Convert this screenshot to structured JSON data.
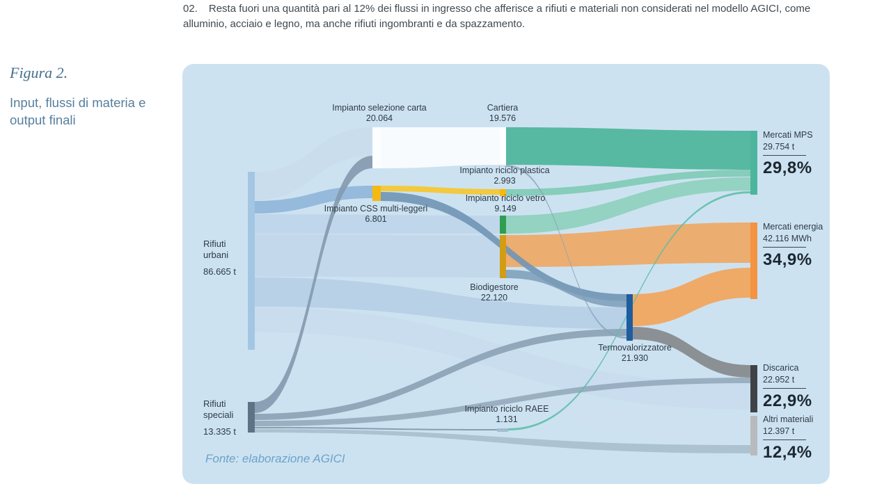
{
  "note": {
    "number": "02.",
    "text": "Resta fuori una quantità pari al 12% dei flussi in ingresso che afferisce a rifiuti e materiali non considerati nel modello AGICI, come alluminio, acciaio e legno, ma anche rifiuti ingombranti e da spazzamento."
  },
  "figure": {
    "label": "Figura 2.",
    "title": "Input, flussi di materia e output finali",
    "source": "Fonte: elaborazione AGICI"
  },
  "chart_data": {
    "type": "sankey",
    "title": "Input, flussi di materia e output finali",
    "background_color": "#cde2f1",
    "nodes": {
      "rifiuti_urbani": {
        "label": "Rifiuti urbani",
        "value": "86.665 t",
        "color": "#a3c6e3"
      },
      "rifiuti_speciali": {
        "label": "Rifiuti speciali",
        "value": "13.335 t",
        "color": "#5d7487"
      },
      "selezione_carta": {
        "label": "Impianto selezione carta",
        "value": "20.064",
        "color": "#fbfdfe"
      },
      "cartiera": {
        "label": "Cartiera",
        "value": "19.576",
        "color": "#ffffff"
      },
      "css": {
        "label": "Impianto CSS multi-leggeri",
        "value": "6.801",
        "color": "#f5b913"
      },
      "plastica": {
        "label": "Impianto riciclo plastica",
        "value": "2.993",
        "color": "#f5b913"
      },
      "vetro": {
        "label": "Impianto riciclo vetro",
        "value": "9.149",
        "color": "#2f9e50"
      },
      "biodigestore": {
        "label": "Biodigestore",
        "value": "22.120",
        "color": "#d29c15"
      },
      "termovalorizzatore": {
        "label": "Termovalorizzatore",
        "value": "21.930",
        "color": "#1e5d9e"
      },
      "raee": {
        "label": "Impianto riciclo RAEE",
        "value": "1.131",
        "color": "#a2bdd2"
      },
      "mercati_mps": {
        "label": "Mercati MPS",
        "value": "29.754 t",
        "percent": "29,8%",
        "color": "#4db59d"
      },
      "mercati_energia": {
        "label": "Mercati energia",
        "value": "42.116 MWh",
        "percent": "34,9%",
        "color": "#f49342"
      },
      "discarica": {
        "label": "Discarica",
        "value": "22.952 t",
        "percent": "22,9%",
        "color": "#3f4347"
      },
      "altri_materiali": {
        "label": "Altri materiali",
        "value": "12.397 t",
        "percent": "12,4%",
        "color": "#b7bbbe"
      }
    },
    "links": [
      {
        "source": "rifiuti_urbani",
        "target": "selezione_carta"
      },
      {
        "source": "rifiuti_urbani",
        "target": "css"
      },
      {
        "source": "rifiuti_urbani",
        "target": "vetro"
      },
      {
        "source": "rifiuti_urbani",
        "target": "biodigestore"
      },
      {
        "source": "rifiuti_urbani",
        "target": "termovalorizzatore"
      },
      {
        "source": "rifiuti_urbani",
        "target": "discarica"
      },
      {
        "source": "rifiuti_urbani",
        "target": "altri_materiali"
      },
      {
        "source": "rifiuti_speciali",
        "target": "selezione_carta"
      },
      {
        "source": "rifiuti_speciali",
        "target": "termovalorizzatore"
      },
      {
        "source": "rifiuti_speciali",
        "target": "discarica"
      },
      {
        "source": "rifiuti_speciali",
        "target": "raee"
      },
      {
        "source": "rifiuti_speciali",
        "target": "altri_materiali"
      },
      {
        "source": "selezione_carta",
        "target": "cartiera"
      },
      {
        "source": "css",
        "target": "plastica"
      },
      {
        "source": "css",
        "target": "termovalorizzatore"
      },
      {
        "source": "cartiera",
        "target": "termovalorizzatore"
      },
      {
        "source": "cartiera",
        "target": "mercati_mps"
      },
      {
        "source": "plastica",
        "target": "mercati_mps"
      },
      {
        "source": "vetro",
        "target": "mercati_mps"
      },
      {
        "source": "biodigestore",
        "target": "mercati_energia"
      },
      {
        "source": "biodigestore",
        "target": "termovalorizzatore"
      },
      {
        "source": "termovalorizzatore",
        "target": "mercati_energia"
      },
      {
        "source": "termovalorizzatore",
        "target": "discarica"
      },
      {
        "source": "raee",
        "target": "mercati_mps"
      }
    ]
  }
}
